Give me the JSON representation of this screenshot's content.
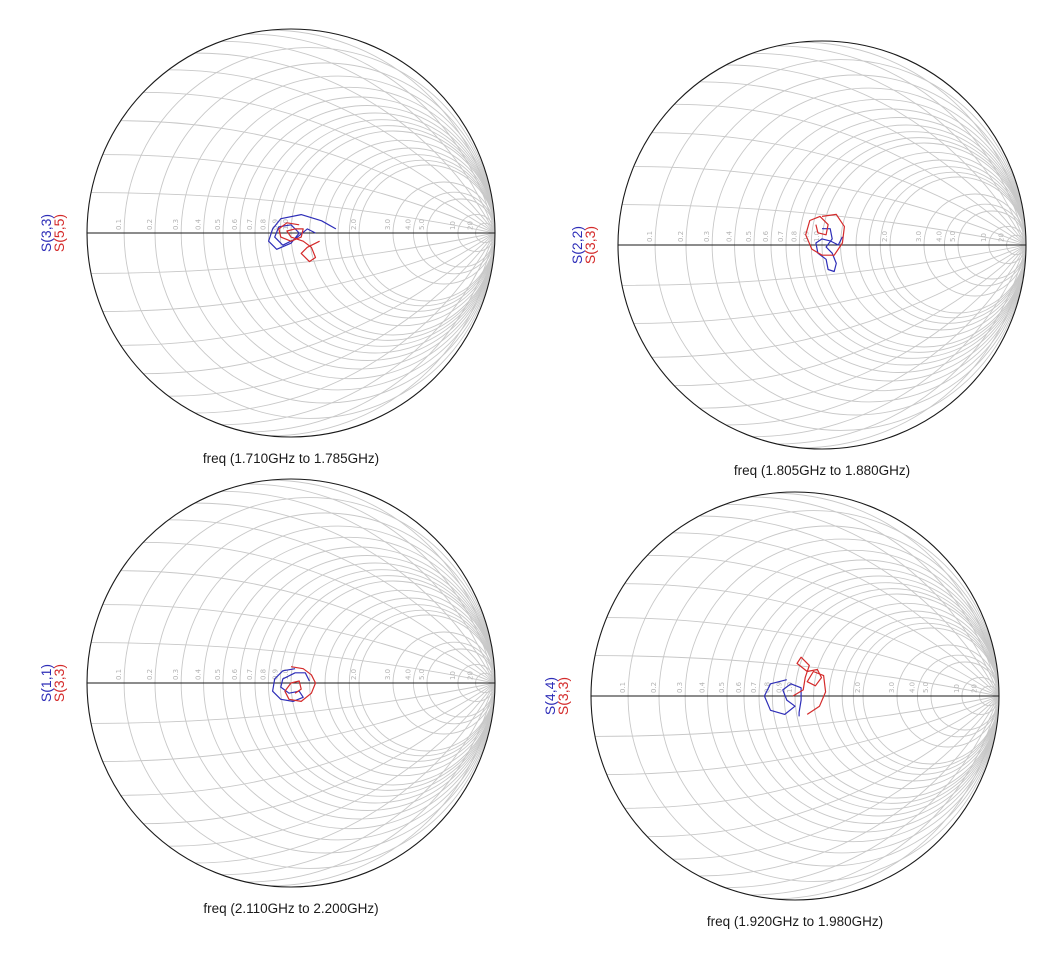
{
  "colors": {
    "blue": "#2e2eb8",
    "red": "#d42a2a",
    "grid": "#c8c8c8",
    "outline": "#1a1a1a"
  },
  "tick_labels": [
    "0.1",
    "0.2",
    "0.3",
    "0.4",
    "0.5",
    "0.6",
    "0.7",
    "0.8",
    "0.9",
    "1.0",
    "2.0",
    "3.0",
    "4.0",
    "5.0",
    "10",
    "20"
  ],
  "chart_data": [
    {
      "type": "smith",
      "xlabel": "freq (1.710GHz to 1.785GHz)",
      "series": [
        {
          "name": "S(3,3)",
          "color": "#2e2eb8",
          "points": [
            [
              0.22,
              0.02
            ],
            [
              0.15,
              0.06
            ],
            [
              0.05,
              0.09
            ],
            [
              -0.05,
              0.07
            ],
            [
              -0.09,
              0.02
            ],
            [
              -0.11,
              -0.04
            ],
            [
              -0.07,
              -0.08
            ],
            [
              0.0,
              -0.05
            ],
            [
              0.04,
              0.0
            ],
            [
              0.0,
              0.04
            ],
            [
              -0.06,
              0.03
            ],
            [
              -0.08,
              -0.02
            ],
            [
              -0.04,
              -0.06
            ],
            [
              0.02,
              -0.03
            ],
            [
              0.08,
              0.02
            ],
            [
              0.12,
              0.0
            ]
          ]
        },
        {
          "name": "S(5,5)",
          "color": "#d42a2a",
          "points": [
            [
              0.04,
              0.04
            ],
            [
              -0.02,
              0.05
            ],
            [
              -0.06,
              0.02
            ],
            [
              -0.05,
              -0.02
            ],
            [
              0.0,
              -0.04
            ],
            [
              0.05,
              -0.02
            ],
            [
              0.06,
              0.02
            ],
            [
              0.02,
              0.02
            ],
            [
              -0.02,
              0.01
            ],
            [
              0.0,
              -0.02
            ],
            [
              0.06,
              -0.04
            ],
            [
              0.1,
              -0.07
            ],
            [
              0.12,
              -0.12
            ],
            [
              0.09,
              -0.14
            ],
            [
              0.05,
              -0.1
            ],
            [
              0.08,
              -0.07
            ],
            [
              0.14,
              -0.04
            ]
          ]
        }
      ]
    },
    {
      "type": "smith",
      "xlabel": "freq (1.805GHz to 1.880GHz)",
      "series": [
        {
          "name": "S(2,2)",
          "color": "#2e2eb8",
          "points": [
            [
              0.0,
              0.08
            ],
            [
              0.04,
              0.08
            ],
            [
              0.05,
              0.03
            ],
            [
              0.02,
              -0.01
            ],
            [
              0.05,
              -0.04
            ],
            [
              0.07,
              -0.09
            ],
            [
              0.06,
              -0.13
            ],
            [
              0.03,
              -0.12
            ],
            [
              0.02,
              -0.07
            ],
            [
              -0.02,
              -0.04
            ],
            [
              -0.03,
              0.01
            ],
            [
              0.0,
              0.03
            ],
            [
              0.04,
              0.02
            ],
            [
              0.08,
              0.0
            ],
            [
              0.1,
              0.04
            ]
          ]
        },
        {
          "name": "S(3,3)",
          "color": "#d42a2a",
          "points": [
            [
              0.0,
              0.14
            ],
            [
              0.07,
              0.15
            ],
            [
              0.11,
              0.09
            ],
            [
              0.1,
              0.01
            ],
            [
              0.06,
              -0.05
            ],
            [
              0.0,
              -0.05
            ],
            [
              -0.05,
              -0.02
            ],
            [
              -0.08,
              0.05
            ],
            [
              -0.06,
              0.12
            ],
            [
              -0.01,
              0.14
            ],
            [
              0.03,
              0.1
            ],
            [
              0.02,
              0.05
            ],
            [
              -0.02,
              0.06
            ],
            [
              -0.03,
              0.1
            ]
          ]
        }
      ]
    },
    {
      "type": "smith",
      "xlabel": "freq (2.110GHz to 2.200GHz)",
      "series": [
        {
          "name": "S(1,1)",
          "color": "#2e2eb8",
          "points": [
            [
              0.02,
              0.07
            ],
            [
              -0.04,
              0.06
            ],
            [
              -0.08,
              0.02
            ],
            [
              -0.09,
              -0.04
            ],
            [
              -0.05,
              -0.08
            ],
            [
              0.01,
              -0.09
            ],
            [
              0.06,
              -0.07
            ],
            [
              0.04,
              -0.04
            ],
            [
              -0.01,
              -0.05
            ],
            [
              -0.05,
              -0.02
            ],
            [
              -0.04,
              0.02
            ],
            [
              0.02,
              0.05
            ],
            [
              0.07,
              0.05
            ],
            [
              0.09,
              0.01
            ]
          ]
        },
        {
          "name": "S(3,3)",
          "color": "#d42a2a",
          "points": [
            [
              0.0,
              0.08
            ],
            [
              0.06,
              0.07
            ],
            [
              0.1,
              0.04
            ],
            [
              0.12,
              0.0
            ],
            [
              0.1,
              -0.05
            ],
            [
              0.05,
              -0.09
            ],
            [
              -0.01,
              -0.08
            ],
            [
              -0.03,
              -0.04
            ],
            [
              0.0,
              0.0
            ],
            [
              0.04,
              0.01
            ],
            [
              0.05,
              -0.03
            ],
            [
              0.02,
              -0.05
            ]
          ]
        }
      ]
    },
    {
      "type": "smith",
      "xlabel": "freq (1.920GHz to 1.980GHz)",
      "series": [
        {
          "name": "S(4,4)",
          "color": "#2e2eb8",
          "points": [
            [
              -0.04,
              0.08
            ],
            [
              -0.12,
              0.06
            ],
            [
              -0.15,
              0.0
            ],
            [
              -0.12,
              -0.07
            ],
            [
              -0.05,
              -0.09
            ],
            [
              0.0,
              -0.05
            ],
            [
              -0.04,
              -0.02
            ],
            [
              -0.06,
              0.03
            ],
            [
              -0.02,
              0.06
            ],
            [
              0.03,
              0.04
            ],
            [
              0.03,
              -0.02
            ],
            [
              0.02,
              -0.08
            ],
            [
              0.02,
              -0.1
            ]
          ]
        },
        {
          "name": "S(3,3)",
          "color": "#d42a2a",
          "points": [
            [
              -0.01,
              0.0
            ],
            [
              0.04,
              0.03
            ],
            [
              0.05,
              0.09
            ],
            [
              0.07,
              0.15
            ],
            [
              0.03,
              0.19
            ],
            [
              0.01,
              0.16
            ],
            [
              0.06,
              0.12
            ],
            [
              0.11,
              0.13
            ],
            [
              0.13,
              0.09
            ],
            [
              0.1,
              0.05
            ],
            [
              0.06,
              0.07
            ],
            [
              0.09,
              0.12
            ],
            [
              0.14,
              0.1
            ],
            [
              0.15,
              0.02
            ],
            [
              0.12,
              -0.05
            ],
            [
              0.06,
              -0.09
            ]
          ]
        }
      ]
    }
  ]
}
